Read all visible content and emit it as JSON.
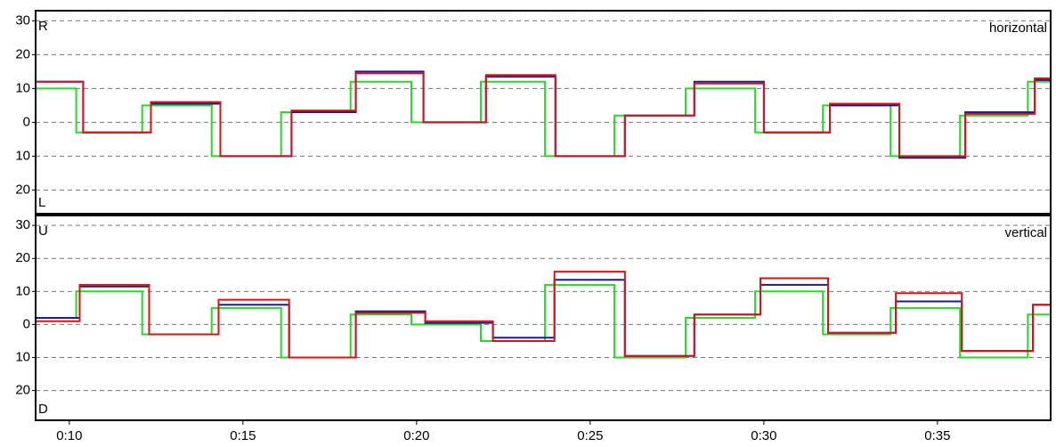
{
  "chart_data": [
    {
      "type": "line",
      "step": true,
      "label": "horizontal",
      "top_label": "R",
      "bottom_label": "L",
      "xlim": [
        9.03,
        38.26
      ],
      "ylim": [
        -27,
        33
      ],
      "yticks": [
        30,
        20,
        10,
        0,
        {
          "value": -10,
          "label": "10"
        },
        {
          "value": -20,
          "label": "20"
        }
      ],
      "grid": true,
      "series": [
        {
          "color": "#22dd22",
          "x": [
            9.03,
            10.2,
            10.2,
            12.1,
            12.1,
            14.1,
            14.1,
            16.1,
            16.1,
            18.1,
            18.1,
            19.85,
            19.85,
            21.85,
            21.85,
            23.7,
            23.7,
            25.7,
            25.7,
            27.75,
            27.75,
            29.75,
            29.75,
            31.7,
            31.7,
            33.65,
            33.65,
            35.65,
            35.65,
            37.6,
            37.6,
            38.26
          ],
          "values": [
            10,
            10,
            -3,
            -3,
            5,
            5,
            -10,
            -10,
            3,
            3,
            12,
            12,
            0,
            0,
            12,
            12,
            -10,
            -10,
            2,
            2,
            10,
            10,
            -3,
            -3,
            5,
            5,
            -10,
            -10,
            2,
            2,
            12,
            12
          ]
        },
        {
          "color": "#1a1a9c",
          "x": [
            9.03,
            10.4,
            10.4,
            12.35,
            12.35,
            14.35,
            14.35,
            16.4,
            16.4,
            18.25,
            18.25,
            20.2,
            20.2,
            22,
            22,
            24,
            24,
            26,
            26,
            28,
            28,
            30,
            30,
            31.9,
            31.9,
            33.9,
            33.9,
            35.8,
            35.8,
            37.8,
            37.8,
            38.26
          ],
          "values": [
            12,
            12,
            -3,
            -3,
            5.5,
            5.5,
            -10,
            -10,
            3,
            3,
            15,
            15,
            0,
            0,
            13.5,
            13.5,
            -10,
            -10,
            2,
            2,
            12,
            12,
            -3,
            -3,
            5,
            5,
            -10.5,
            -10.5,
            3,
            3,
            12.5,
            12.5
          ]
        },
        {
          "color": "#dd1111",
          "x": [
            9.03,
            10.4,
            10.4,
            12.35,
            12.35,
            14.35,
            14.35,
            16.4,
            16.4,
            18.25,
            18.25,
            20.2,
            20.2,
            22,
            22,
            24,
            24,
            26,
            26,
            28,
            28,
            30,
            30,
            31.9,
            31.9,
            33.9,
            33.9,
            35.8,
            35.8,
            37.8,
            37.8,
            38.26
          ],
          "values": [
            12,
            12,
            -3,
            -3,
            6,
            6,
            -10,
            -10,
            3.5,
            3.5,
            14.5,
            14.5,
            0,
            0,
            14,
            14,
            -10,
            -10,
            2,
            2,
            11.5,
            11.5,
            -3,
            -3,
            5.5,
            5.5,
            -10,
            -10,
            2.5,
            2.5,
            13,
            13
          ]
        }
      ]
    },
    {
      "type": "line",
      "step": true,
      "label": "vertical",
      "top_label": "U",
      "bottom_label": "D",
      "xlim": [
        9.03,
        38.26
      ],
      "ylim": [
        -29,
        33
      ],
      "yticks": [
        30,
        20,
        10,
        0,
        {
          "value": -10,
          "label": "10"
        },
        {
          "value": -20,
          "label": "20"
        }
      ],
      "xticks": [
        {
          "value": 10,
          "label": "0:10"
        },
        {
          "value": 15,
          "label": "0:15"
        },
        {
          "value": 20,
          "label": "0:20"
        },
        {
          "value": 25,
          "label": "0:25"
        },
        {
          "value": 30,
          "label": "0:30"
        },
        {
          "value": 35,
          "label": "0:35"
        }
      ],
      "grid": true,
      "series": [
        {
          "color": "#22dd22",
          "x": [
            9.03,
            10.2,
            10.2,
            12.1,
            12.1,
            14.1,
            14.1,
            16.1,
            16.1,
            18.1,
            18.1,
            19.85,
            19.85,
            21.85,
            21.85,
            23.7,
            23.7,
            25.7,
            25.7,
            27.75,
            27.75,
            29.75,
            29.75,
            31.7,
            31.7,
            33.65,
            33.65,
            35.65,
            35.65,
            37.6,
            37.6,
            38.26
          ],
          "values": [
            2,
            2,
            10,
            10,
            -3,
            -3,
            5,
            5,
            -10,
            -10,
            3,
            3,
            0,
            0,
            -5,
            -5,
            12,
            12,
            -10,
            -10,
            2,
            2,
            10,
            10,
            -3,
            -3,
            5,
            5,
            -10,
            -10,
            3,
            3
          ]
        },
        {
          "color": "#1a1a9c",
          "x": [
            9.03,
            10.3,
            10.3,
            12.3,
            12.3,
            14.3,
            14.3,
            16.33,
            16.33,
            18.25,
            18.25,
            20.25,
            20.25,
            22.2,
            22.2,
            23.97,
            23.97,
            26,
            26,
            28,
            28,
            29.9,
            29.9,
            31.85,
            31.85,
            33.8,
            33.8,
            35.7,
            35.7,
            37.75,
            37.75,
            38.26
          ],
          "values": [
            2,
            2,
            11.5,
            11.5,
            -3,
            -3,
            6,
            6,
            -10,
            -10,
            4,
            4,
            0.5,
            0.5,
            -4,
            -4,
            13.5,
            13.5,
            -9.5,
            -9.5,
            3,
            3,
            12,
            12,
            -2.5,
            -2.5,
            7,
            7,
            -8,
            -8,
            6,
            6
          ]
        },
        {
          "color": "#dd1111",
          "x": [
            9.03,
            10.3,
            10.3,
            12.3,
            12.3,
            14.3,
            14.3,
            16.33,
            16.33,
            18.25,
            18.25,
            20.25,
            20.25,
            22.2,
            22.2,
            23.97,
            23.97,
            26,
            26,
            28,
            28,
            29.9,
            29.9,
            31.85,
            31.85,
            33.8,
            33.8,
            35.7,
            35.7,
            37.75,
            37.75,
            38.26
          ],
          "values": [
            1,
            1,
            12,
            12,
            -3,
            -3,
            7.5,
            7.5,
            -10,
            -10,
            3.5,
            3.5,
            1,
            1,
            -5,
            -5,
            16,
            16,
            -9.5,
            -9.5,
            3,
            3,
            14,
            14,
            -2.5,
            -2.5,
            9.5,
            9.5,
            -8,
            -8,
            6,
            6
          ]
        }
      ]
    }
  ]
}
